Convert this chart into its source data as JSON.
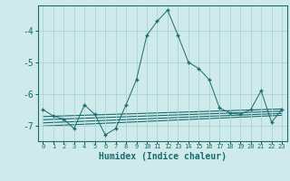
{
  "title": "",
  "xlabel": "Humidex (Indice chaleur)",
  "background_color": "#ceeaea",
  "grid_color": "#aad4d4",
  "line_color": "#1a6b6b",
  "x_values": [
    0,
    1,
    2,
    3,
    4,
    5,
    6,
    7,
    8,
    9,
    10,
    11,
    12,
    13,
    14,
    15,
    16,
    17,
    18,
    19,
    20,
    21,
    22,
    23
  ],
  "main_line": [
    -6.5,
    -6.7,
    -6.8,
    -7.1,
    -6.35,
    -6.65,
    -7.3,
    -7.1,
    -6.35,
    -5.55,
    -4.15,
    -3.7,
    -3.35,
    -4.15,
    -5.0,
    -5.2,
    -5.55,
    -6.45,
    -6.6,
    -6.65,
    -6.5,
    -5.9,
    -6.9,
    -6.5
  ],
  "trend_lines": [
    {
      "x": [
        0,
        23
      ],
      "y": [
        -6.72,
        -6.48
      ]
    },
    {
      "x": [
        0,
        23
      ],
      "y": [
        -6.82,
        -6.55
      ]
    },
    {
      "x": [
        0,
        23
      ],
      "y": [
        -6.92,
        -6.62
      ]
    },
    {
      "x": [
        0,
        23
      ],
      "y": [
        -7.02,
        -6.68
      ]
    }
  ],
  "ylim": [
    -7.5,
    -3.2
  ],
  "yticks": [
    -7,
    -6,
    -5,
    -4
  ],
  "xlim": [
    -0.5,
    23.5
  ],
  "xticks": [
    0,
    1,
    2,
    3,
    4,
    5,
    6,
    7,
    8,
    9,
    10,
    11,
    12,
    13,
    14,
    15,
    16,
    17,
    18,
    19,
    20,
    21,
    22,
    23
  ]
}
